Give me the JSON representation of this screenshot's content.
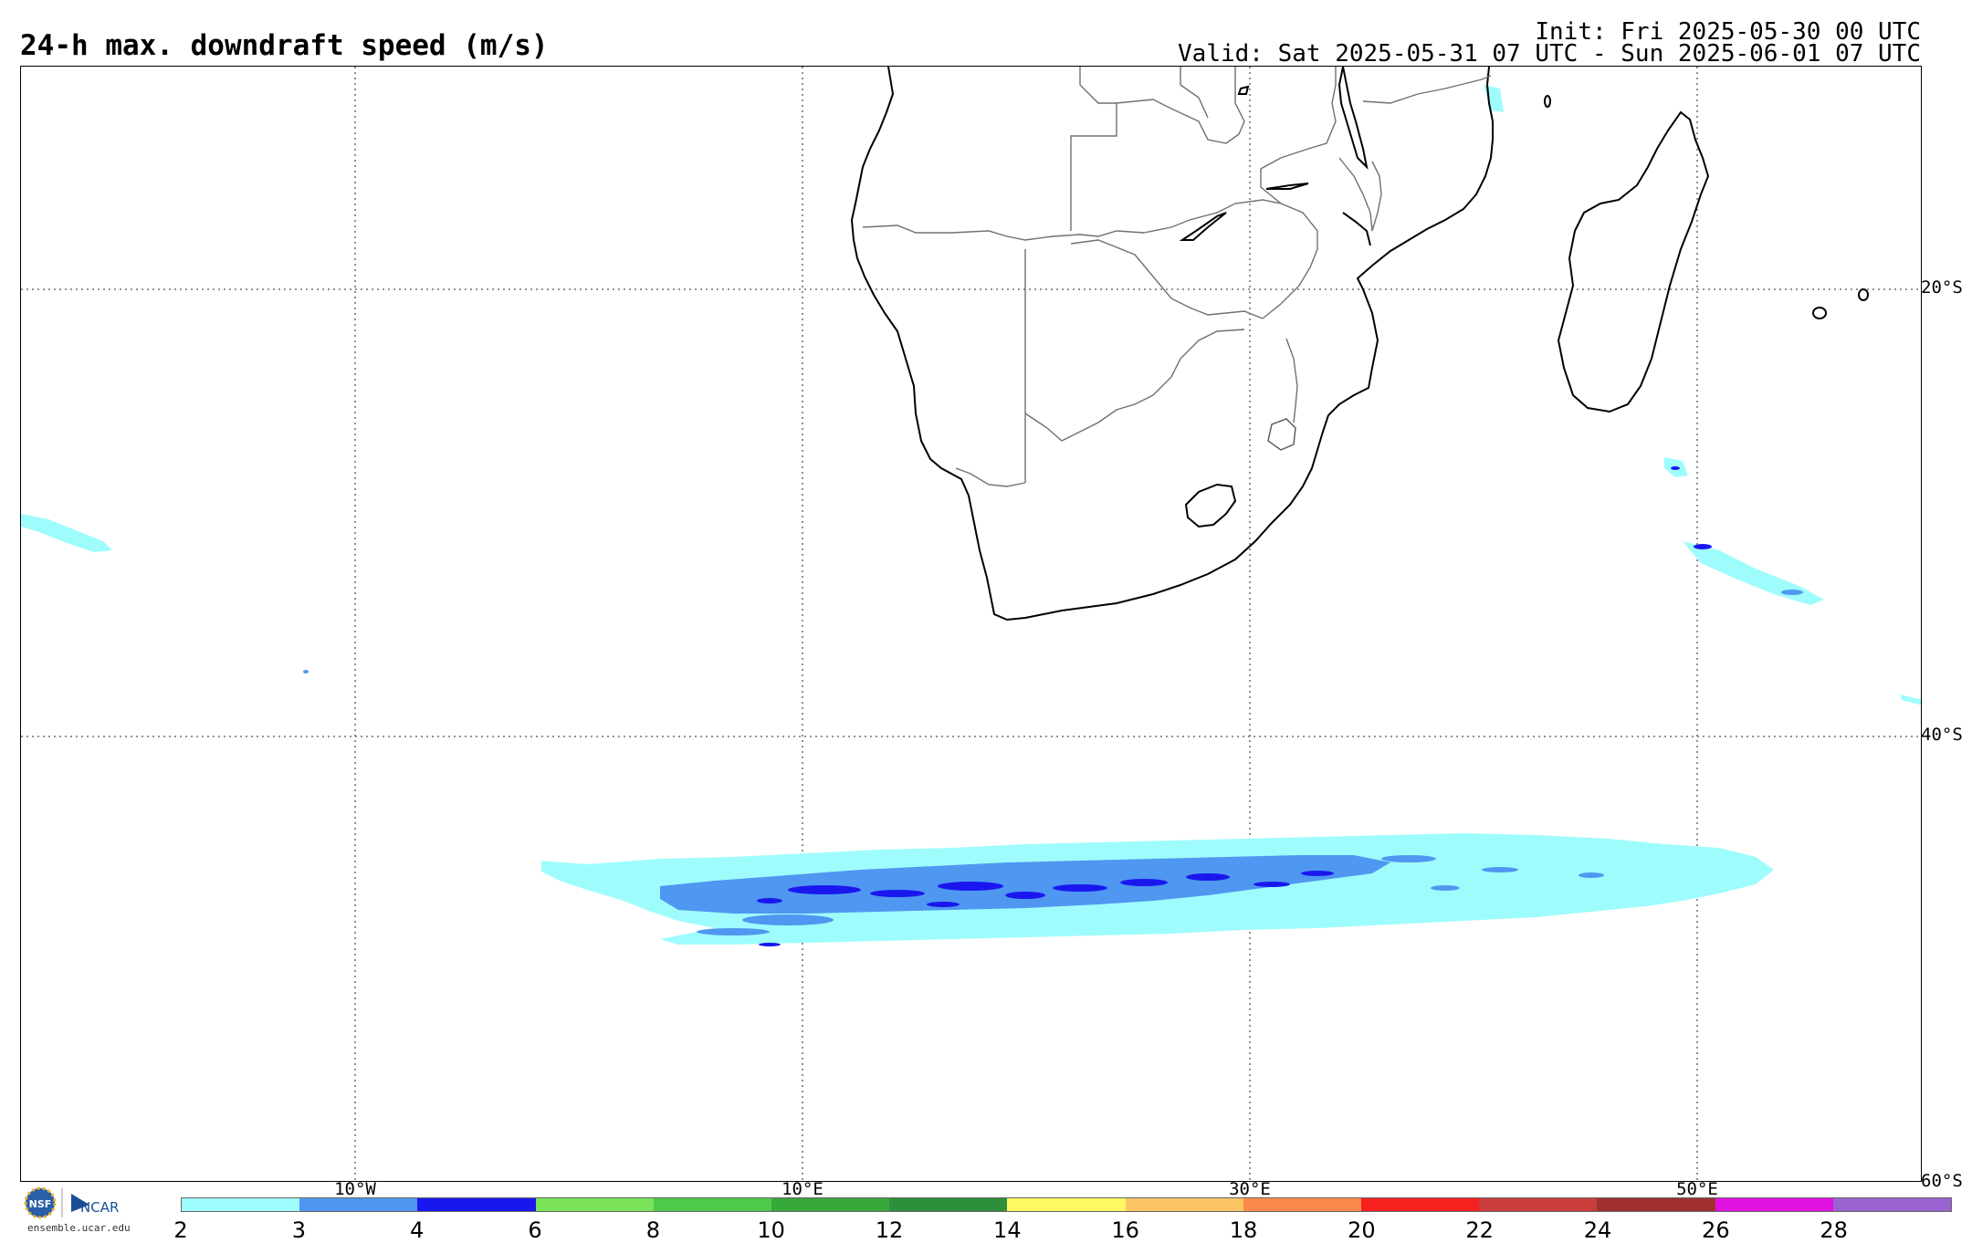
{
  "header": {
    "title": "24-h max. downdraft speed (m/s)",
    "init": "Init: Fri 2025-05-30 00 UTC",
    "valid": "Valid: Sat 2025-05-31 07 UTC - Sun 2025-06-01 07 UTC"
  },
  "map": {
    "lat_labels": [
      "20°S",
      "40°S",
      "60°S"
    ],
    "lon_labels": [
      "10°W",
      "10°E",
      "30°E",
      "50°E"
    ],
    "gridlines": true
  },
  "colorbar": {
    "ticks": [
      "2",
      "3",
      "4",
      "6",
      "8",
      "10",
      "12",
      "14",
      "16",
      "18",
      "20",
      "22",
      "24",
      "26",
      "28"
    ],
    "colors": [
      "#9ffcfc",
      "#4f97f0",
      "#1a17ee",
      "#7be35a",
      "#4fc94a",
      "#37a83a",
      "#2d8f3c",
      "#fef961",
      "#fcc564",
      "#f98a4b",
      "#f6201e",
      "#c93d3d",
      "#a02f2f",
      "#e012e0",
      "#9a63cf"
    ]
  },
  "logo": {
    "nsf": "NSF",
    "ncar": "NCAR",
    "url": "ensemble.ucar.edu"
  },
  "colors": {
    "coast": "#000000",
    "border": "#7a7a7a",
    "light": "#9ffcfc",
    "medium": "#4f97f0",
    "strong": "#1a17ee"
  }
}
